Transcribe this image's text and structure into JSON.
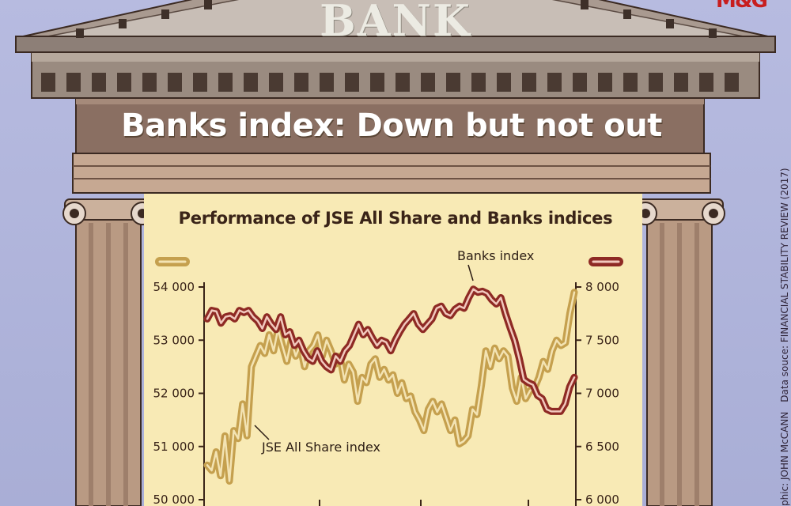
{
  "header": {
    "bank_word": "BANK",
    "logo": "M&G",
    "banner_title": "Banks index: Down but not out"
  },
  "credit": {
    "graphic": "phic: JOHN McCANN",
    "source": "Data souce: FINANCIAL STABILITY REVIEW (2017)"
  },
  "colors": {
    "all_share_line": "#c5a04e",
    "all_share_glow": "#f3e3b3",
    "banks_line": "#8e2a24",
    "banks_glow": "#f1c8bd",
    "chart_background": "#f8eab5",
    "temple_stone": "#b99a83"
  },
  "chart_data": {
    "type": "line",
    "title": "Performance of JSE All Share and Banks indices",
    "xlabel": "",
    "ylabel": "",
    "left_axis": {
      "ylim": [
        50000,
        54000
      ],
      "ticks": [
        "50 000",
        "51 000",
        "52 000",
        "53 000",
        "54 000"
      ]
    },
    "right_axis": {
      "ylim": [
        6000,
        8000
      ],
      "ticks": [
        "6 000",
        "6 500",
        "7 000",
        "7 500",
        "8 000"
      ]
    },
    "grid": false,
    "legend": "top, color swatches over each axis",
    "series": [
      {
        "name": "JSE All Share index",
        "axis": "left",
        "values": [
          50650,
          50550,
          50900,
          50450,
          51200,
          50350,
          51300,
          51150,
          51800,
          51200,
          52500,
          52700,
          52900,
          52750,
          53100,
          52800,
          53200,
          52900,
          52600,
          53000,
          52700,
          52900,
          52500,
          52800,
          52900,
          53100,
          52700,
          53000,
          52800,
          52550,
          52700,
          52250,
          52550,
          52400,
          51850,
          52300,
          52200,
          52550,
          52650,
          52300,
          52450,
          52250,
          52350,
          52000,
          52200,
          51900,
          51950,
          51650,
          51500,
          51300,
          51700,
          51850,
          51650,
          51800,
          51550,
          51300,
          51500,
          51050,
          51100,
          51200,
          51700,
          51600,
          52150,
          52800,
          52500,
          52850,
          52650,
          52800,
          52700,
          52100,
          51850,
          52300,
          51900,
          52050,
          52100,
          52300,
          52600,
          52450,
          52800,
          53000,
          52900,
          52950,
          53500,
          53900
        ]
      },
      {
        "name": "Banks index",
        "axis": "right",
        "values": [
          7700,
          7780,
          7770,
          7660,
          7720,
          7730,
          7700,
          7780,
          7760,
          7780,
          7720,
          7680,
          7610,
          7720,
          7650,
          7600,
          7720,
          7550,
          7580,
          7450,
          7500,
          7400,
          7330,
          7300,
          7400,
          7300,
          7250,
          7220,
          7350,
          7300,
          7400,
          7450,
          7550,
          7650,
          7550,
          7600,
          7520,
          7450,
          7500,
          7480,
          7400,
          7500,
          7580,
          7650,
          7700,
          7750,
          7650,
          7600,
          7650,
          7700,
          7800,
          7820,
          7750,
          7730,
          7790,
          7820,
          7800,
          7900,
          7980,
          7950,
          7960,
          7940,
          7880,
          7840,
          7900,
          7750,
          7620,
          7500,
          7330,
          7130,
          7100,
          7080,
          6980,
          6950,
          6850,
          6830,
          6830,
          6830,
          6900,
          7060,
          7150
        ]
      }
    ],
    "annotations": [
      "Banks index",
      "JSE All Share index"
    ]
  }
}
